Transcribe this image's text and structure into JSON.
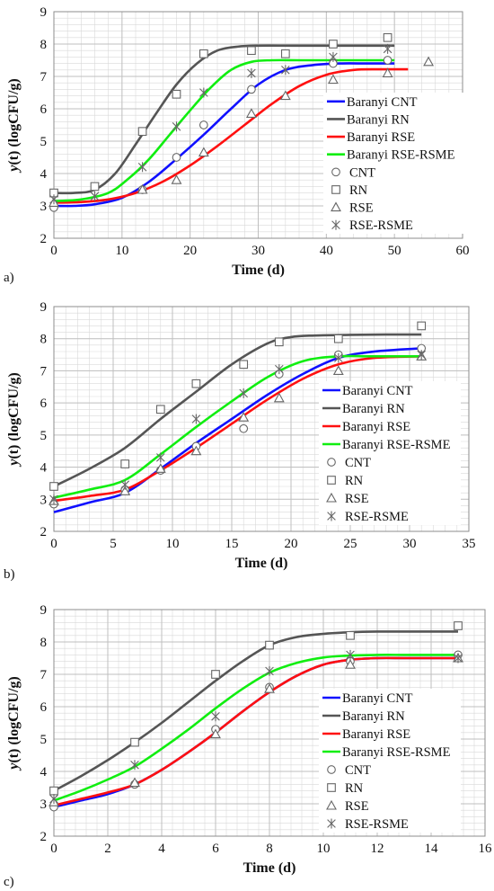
{
  "colors": {
    "CNT": "#1010ff",
    "RN": "#555555",
    "RSE": "#ff1010",
    "RSE-RSME": "#10ee10",
    "grid": "#bfbfbf",
    "marker": "#666666"
  },
  "chart_data": [
    {
      "type": "line",
      "panel_label": "a)",
      "xlabel": "Time (d)",
      "ylabel": "y(t) (logCFU/g)",
      "xlim": [
        0,
        60
      ],
      "ylim": [
        2,
        9
      ],
      "xticks": [
        0,
        10,
        20,
        30,
        40,
        50,
        60
      ],
      "yticks": [
        2,
        3,
        4,
        5,
        6,
        7,
        8,
        9
      ],
      "grid": true,
      "legend": [
        "Baranyi CNT",
        "Baranyi RN",
        "Baranyi RSE",
        "Baranyi RSE-RSME",
        "CNT",
        "RN",
        "RSE",
        "RSE-RSME"
      ],
      "legend_position": "right",
      "series": [
        {
          "name": "Baranyi CNT",
          "kind": "line",
          "key": "CNT",
          "x": [
            0,
            3,
            6,
            10,
            14,
            18,
            22,
            26,
            30,
            34,
            38,
            42,
            46,
            50
          ],
          "y": [
            3.0,
            3.0,
            3.05,
            3.25,
            3.75,
            4.45,
            5.2,
            6.0,
            6.75,
            7.2,
            7.35,
            7.4,
            7.4,
            7.4
          ]
        },
        {
          "name": "Baranyi RN",
          "kind": "line",
          "key": "RN",
          "x": [
            0,
            3,
            6,
            9,
            12,
            15,
            18,
            21,
            24,
            27,
            30,
            35,
            40,
            45,
            50
          ],
          "y": [
            3.4,
            3.4,
            3.5,
            4.0,
            4.9,
            5.85,
            6.75,
            7.4,
            7.8,
            7.92,
            7.95,
            7.95,
            7.95,
            7.95,
            7.95
          ]
        },
        {
          "name": "Baranyi RSE",
          "kind": "line",
          "key": "RSE",
          "x": [
            0,
            4,
            8,
            12,
            16,
            20,
            24,
            28,
            32,
            36,
            40,
            44,
            48,
            52
          ],
          "y": [
            3.1,
            3.12,
            3.2,
            3.4,
            3.75,
            4.25,
            4.85,
            5.5,
            6.15,
            6.7,
            7.05,
            7.2,
            7.22,
            7.22
          ]
        },
        {
          "name": "Baranyi RSE-RSME",
          "kind": "line",
          "key": "RSE-RSME",
          "x": [
            0,
            4,
            8,
            11,
            14,
            17,
            20,
            23,
            26,
            29,
            32,
            36,
            40,
            45,
            50
          ],
          "y": [
            3.15,
            3.2,
            3.4,
            3.85,
            4.45,
            5.2,
            5.95,
            6.65,
            7.2,
            7.45,
            7.5,
            7.5,
            7.5,
            7.5,
            7.5
          ]
        },
        {
          "name": "CNT",
          "kind": "marker",
          "marker": "circle",
          "key": "CNT",
          "x": [
            0,
            13,
            18,
            22,
            29,
            41,
            49
          ],
          "y": [
            2.95,
            3.5,
            4.5,
            5.5,
            6.6,
            7.4,
            7.5
          ]
        },
        {
          "name": "RN",
          "kind": "marker",
          "marker": "square",
          "key": "RN",
          "x": [
            0,
            6,
            13,
            18,
            22,
            29,
            34,
            41,
            49
          ],
          "y": [
            3.4,
            3.6,
            5.3,
            6.45,
            7.7,
            7.8,
            7.7,
            8.0,
            8.2
          ]
        },
        {
          "name": "RSE",
          "kind": "marker",
          "marker": "triangle",
          "key": "RSE",
          "x": [
            0,
            13,
            18,
            22,
            29,
            34,
            41,
            49,
            55
          ],
          "y": [
            3.1,
            3.5,
            3.8,
            4.65,
            5.85,
            6.4,
            6.9,
            7.1,
            7.45
          ]
        },
        {
          "name": "RSE-RSME",
          "kind": "marker",
          "marker": "star",
          "key": "RSE-RSME",
          "x": [
            0,
            6,
            13,
            18,
            22,
            29,
            34,
            41,
            49
          ],
          "y": [
            3.2,
            3.3,
            4.2,
            5.45,
            6.5,
            7.1,
            7.2,
            7.6,
            7.85
          ]
        }
      ]
    },
    {
      "type": "line",
      "panel_label": "b)",
      "xlabel": "Time (d)",
      "ylabel": "y(t) (logCFU/g)",
      "xlim": [
        0,
        35
      ],
      "ylim": [
        2,
        9
      ],
      "xticks": [
        0,
        5,
        10,
        15,
        20,
        25,
        30,
        35
      ],
      "yticks": [
        2,
        3,
        4,
        5,
        6,
        7,
        8,
        9
      ],
      "grid": true,
      "legend": [
        "Baranyi CNT",
        "Baranyi RN",
        "Baranyi RSE",
        "Baranyi RSE-RSME",
        "CNT",
        "RN",
        "RSE",
        "RSE-RSME"
      ],
      "legend_position": "right",
      "series": [
        {
          "name": "Baranyi CNT",
          "kind": "line",
          "key": "CNT",
          "x": [
            0,
            3,
            6,
            9,
            12,
            15,
            18,
            21,
            24,
            27,
            31
          ],
          "y": [
            2.6,
            2.9,
            3.2,
            3.95,
            4.75,
            5.5,
            6.25,
            6.9,
            7.4,
            7.6,
            7.7
          ]
        },
        {
          "name": "Baranyi RN",
          "kind": "line",
          "key": "RN",
          "x": [
            0,
            3,
            6,
            9,
            12,
            15,
            18,
            20,
            22,
            25,
            28,
            31
          ],
          "y": [
            3.4,
            3.95,
            4.6,
            5.5,
            6.35,
            7.2,
            7.85,
            8.05,
            8.1,
            8.12,
            8.13,
            8.13
          ]
        },
        {
          "name": "Baranyi RSE",
          "kind": "line",
          "key": "RSE",
          "x": [
            0,
            3,
            6,
            9,
            12,
            15,
            18,
            21,
            24,
            27,
            31
          ],
          "y": [
            2.95,
            3.1,
            3.3,
            3.9,
            4.6,
            5.35,
            6.1,
            6.75,
            7.2,
            7.4,
            7.45
          ]
        },
        {
          "name": "Baranyi RSE-RSME",
          "kind": "line",
          "key": "RSE-RSME",
          "x": [
            0,
            3,
            6,
            9,
            12,
            15,
            18,
            21,
            24,
            27,
            31
          ],
          "y": [
            3.05,
            3.3,
            3.6,
            4.4,
            5.25,
            6.05,
            6.8,
            7.3,
            7.45,
            7.45,
            7.45
          ]
        },
        {
          "name": "CNT",
          "kind": "marker",
          "marker": "circle",
          "key": "CNT",
          "x": [
            0,
            6,
            9,
            12,
            16,
            19,
            24,
            31
          ],
          "y": [
            2.85,
            3.3,
            3.9,
            4.65,
            5.2,
            6.9,
            7.5,
            7.7
          ]
        },
        {
          "name": "RN",
          "kind": "marker",
          "marker": "square",
          "key": "RN",
          "x": [
            0,
            6,
            9,
            12,
            16,
            19,
            24,
            31
          ],
          "y": [
            3.4,
            4.1,
            5.8,
            6.6,
            7.2,
            7.9,
            8.0,
            8.4
          ]
        },
        {
          "name": "RSE",
          "kind": "marker",
          "marker": "triangle",
          "key": "RSE",
          "x": [
            0,
            6,
            9,
            12,
            16,
            19,
            24,
            31
          ],
          "y": [
            2.95,
            3.25,
            3.95,
            4.5,
            5.55,
            6.15,
            7.0,
            7.45
          ]
        },
        {
          "name": "RSE-RSME",
          "kind": "marker",
          "marker": "star",
          "key": "RSE-RSME",
          "x": [
            0,
            6,
            9,
            12,
            16,
            19,
            24,
            31
          ],
          "y": [
            3.0,
            3.45,
            4.3,
            5.5,
            6.3,
            7.05,
            7.4,
            7.5
          ]
        }
      ]
    },
    {
      "type": "line",
      "panel_label": "c)",
      "xlabel": "Time (d)",
      "ylabel": "y(t) (logCFU/g)",
      "xlim": [
        0,
        16
      ],
      "ylim": [
        2,
        9
      ],
      "xticks": [
        0,
        2,
        4,
        6,
        8,
        10,
        12,
        14,
        16
      ],
      "yticks": [
        2,
        3,
        4,
        5,
        6,
        7,
        8,
        9
      ],
      "grid": true,
      "legend": [
        "Baranyi CNT",
        "Baranyi RN",
        "Baranyi RSE",
        "Baranyi RSE-RSME",
        "CNT",
        "RN",
        "RSE",
        "RSE-RSME"
      ],
      "legend_position": "right",
      "series": [
        {
          "name": "Baranyi CNT",
          "kind": "line",
          "key": "CNT",
          "x": [
            0,
            1,
            2,
            3,
            4,
            5,
            6,
            7,
            8,
            9,
            10,
            11,
            12,
            13,
            14,
            15
          ],
          "y": [
            2.9,
            3.1,
            3.3,
            3.6,
            4.05,
            4.6,
            5.2,
            5.85,
            6.45,
            6.95,
            7.3,
            7.45,
            7.5,
            7.5,
            7.5,
            7.5
          ]
        },
        {
          "name": "Baranyi RN",
          "kind": "line",
          "key": "RN",
          "x": [
            0,
            1,
            2,
            3,
            4,
            5,
            6,
            7,
            8,
            9,
            10,
            11,
            12,
            13,
            14,
            15
          ],
          "y": [
            3.4,
            3.85,
            4.35,
            4.9,
            5.5,
            6.15,
            6.8,
            7.4,
            7.9,
            8.15,
            8.25,
            8.3,
            8.32,
            8.32,
            8.32,
            8.32
          ]
        },
        {
          "name": "Baranyi RSE",
          "kind": "line",
          "key": "RSE",
          "x": [
            0,
            1,
            2,
            3,
            4,
            5,
            6,
            7,
            8,
            9,
            10,
            11,
            12,
            13,
            14,
            15
          ],
          "y": [
            2.95,
            3.15,
            3.35,
            3.6,
            4.05,
            4.6,
            5.2,
            5.85,
            6.45,
            6.95,
            7.3,
            7.45,
            7.5,
            7.5,
            7.5,
            7.5
          ]
        },
        {
          "name": "Baranyi RSE-RSME",
          "kind": "line",
          "key": "RSE-RSME",
          "x": [
            0,
            1,
            2,
            3,
            4,
            5,
            6,
            7,
            8,
            9,
            10,
            11,
            12,
            13,
            14,
            15
          ],
          "y": [
            3.1,
            3.4,
            3.75,
            4.15,
            4.7,
            5.3,
            5.95,
            6.55,
            7.05,
            7.35,
            7.52,
            7.58,
            7.6,
            7.6,
            7.6,
            7.6
          ]
        },
        {
          "name": "CNT",
          "kind": "marker",
          "marker": "circle",
          "key": "CNT",
          "x": [
            0,
            3,
            6,
            8,
            11,
            15
          ],
          "y": [
            2.9,
            3.6,
            5.3,
            6.6,
            7.4,
            7.6
          ]
        },
        {
          "name": "RN",
          "kind": "marker",
          "marker": "square",
          "key": "RN",
          "x": [
            0,
            3,
            6,
            8,
            11,
            15
          ],
          "y": [
            3.4,
            4.9,
            7.0,
            7.9,
            8.2,
            8.5
          ]
        },
        {
          "name": "RSE",
          "kind": "marker",
          "marker": "triangle",
          "key": "RSE",
          "x": [
            0,
            3,
            6,
            8,
            11,
            15
          ],
          "y": [
            3.05,
            3.65,
            5.15,
            6.55,
            7.3,
            7.5
          ]
        },
        {
          "name": "RSE-RSME",
          "kind": "marker",
          "marker": "star",
          "key": "RSE-RSME",
          "x": [
            0,
            3,
            6,
            8,
            11,
            15
          ],
          "y": [
            3.15,
            4.2,
            5.7,
            7.1,
            7.6,
            7.5
          ]
        }
      ]
    }
  ]
}
